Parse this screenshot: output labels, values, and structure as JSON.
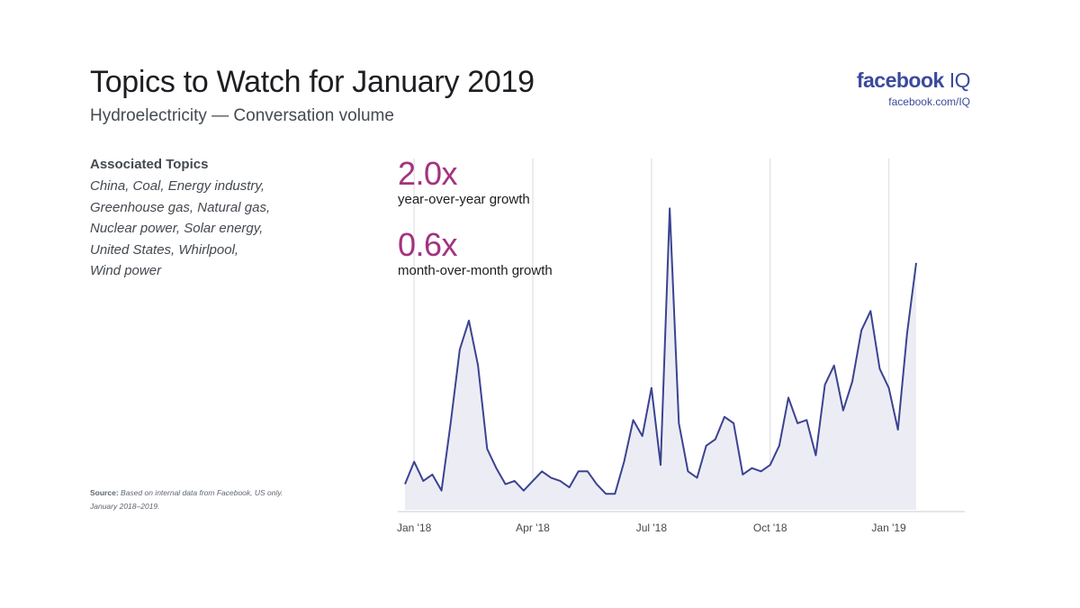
{
  "header": {
    "title": "Topics to Watch for January 2019",
    "subtitle": "Hydroelectricity — Conversation volume"
  },
  "brand": {
    "name": "facebook",
    "suffix": "IQ",
    "url": "facebook.com/IQ",
    "color": "#3b4a9c"
  },
  "associated": {
    "heading": "Associated Topics",
    "lines": [
      "China, Coal, Energy industry,",
      "Greenhouse gas, Natural gas,",
      "Nuclear power, Solar energy,",
      "United States, Whirlpool,",
      "Wind power"
    ]
  },
  "source": {
    "label": "Source:",
    "text": "Based on internal data from Facebook, US only.",
    "period": "January 2018–2019."
  },
  "stats": [
    {
      "value": "2.0x",
      "label": "year-over-year growth"
    },
    {
      "value": "0.6x",
      "label": "month-over-month growth"
    }
  ],
  "colors": {
    "accent": "#a3337e",
    "line": "#3b4391",
    "area": "#ecedf4",
    "grid": "#e4e5ea"
  },
  "chart_data": {
    "type": "area",
    "title": "",
    "xlabel": "",
    "ylabel": "",
    "x_ticks": [
      "Jan '18",
      "Apr '18",
      "Jul '18",
      "Oct '18",
      "Jan '19"
    ],
    "tick_weeks": [
      1,
      14,
      27,
      40,
      53
    ],
    "grid": "vertical",
    "ylim": [
      0,
      100
    ],
    "series": [
      {
        "values": [
          8,
          15,
          9,
          11,
          6,
          27,
          50,
          59,
          45,
          19,
          13,
          8,
          9,
          6,
          9,
          12,
          10,
          9,
          7,
          12,
          12,
          8,
          5,
          5,
          15,
          28,
          23,
          38,
          14,
          94,
          27,
          12,
          10,
          20,
          22,
          29,
          27,
          11,
          13,
          12,
          14,
          20,
          35,
          27,
          28,
          17,
          39,
          45,
          31,
          40,
          56,
          62,
          44,
          38,
          25,
          55,
          77
        ]
      }
    ]
  }
}
